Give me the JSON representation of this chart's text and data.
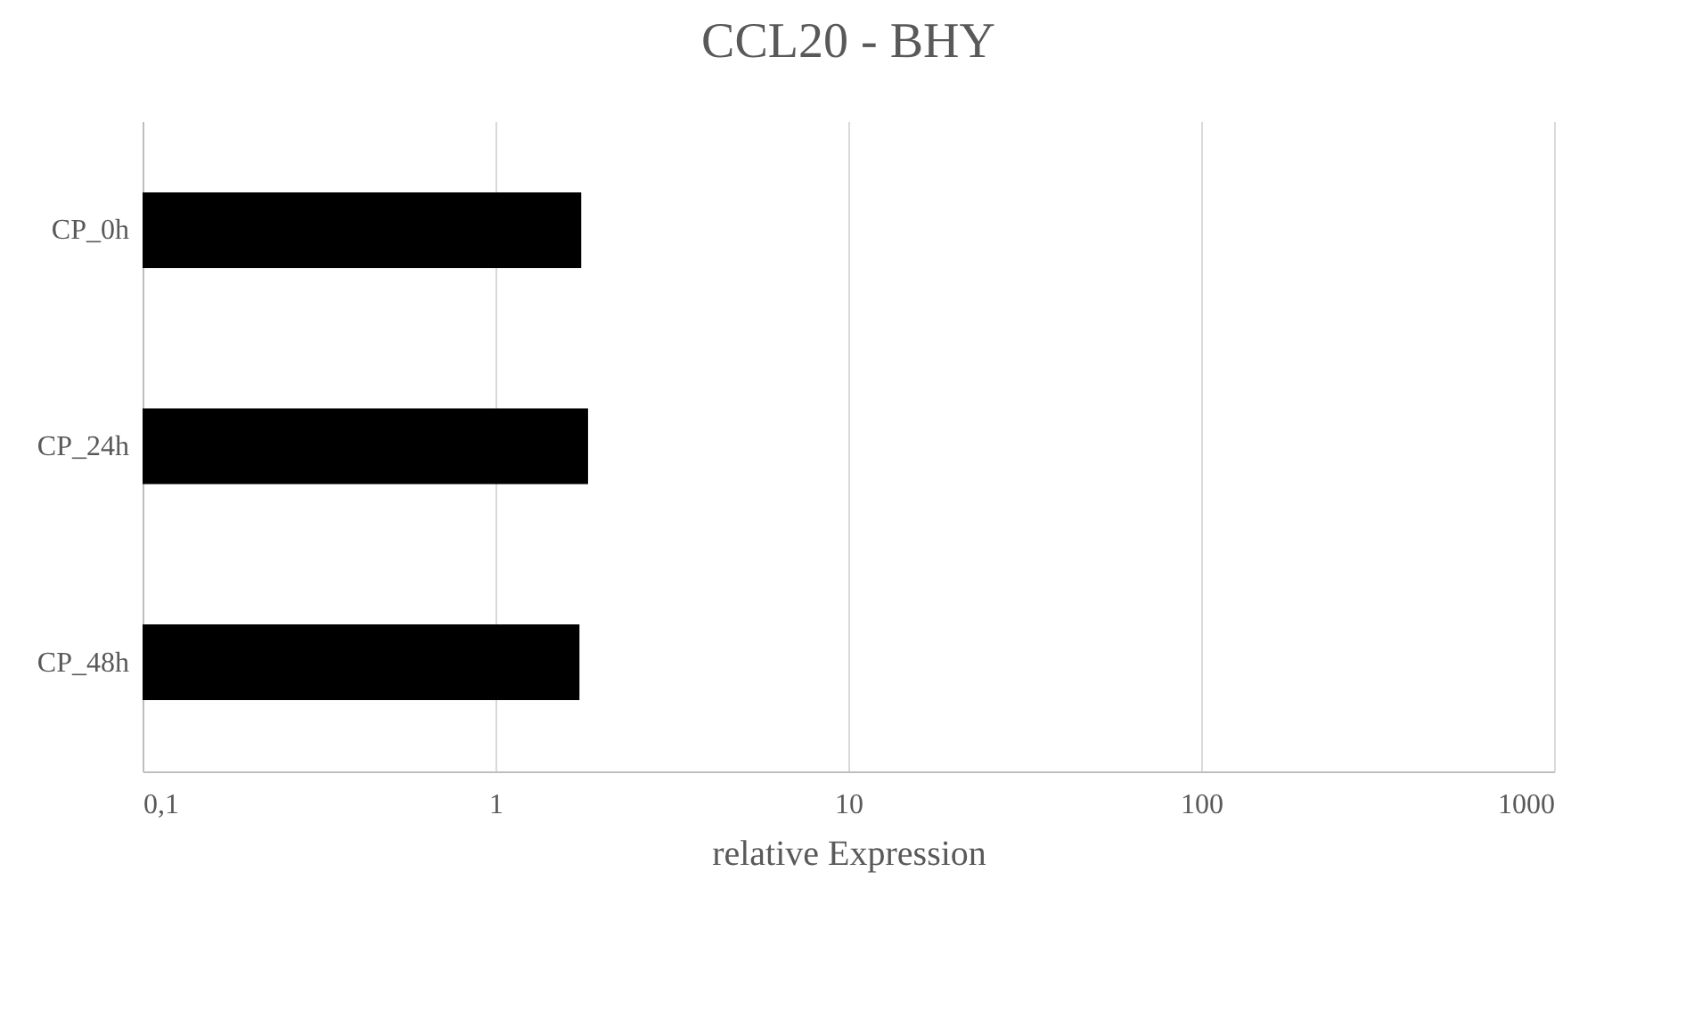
{
  "chart_data": {
    "type": "bar",
    "orientation": "horizontal",
    "title": "CCL20 - BHY",
    "xlabel": "relative Expression",
    "categories": [
      "CP_0h",
      "CP_24h",
      "CP_48h"
    ],
    "values": [
      1.75,
      1.83,
      1.73
    ],
    "color": "#000000",
    "log": "x",
    "xlim": [
      0.1,
      1000
    ],
    "xticks": [
      {
        "value": 0.1,
        "label": "0,1"
      },
      1,
      10,
      100,
      1000
    ],
    "grid": "x"
  }
}
